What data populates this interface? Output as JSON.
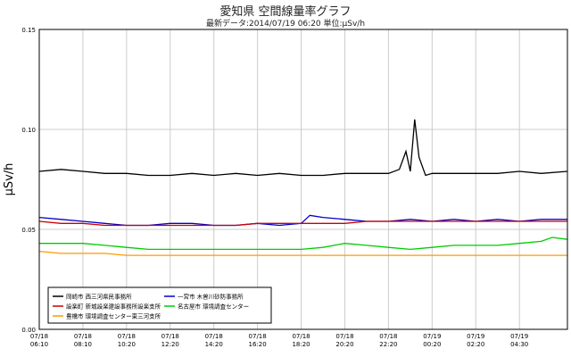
{
  "chart_data": {
    "type": "line",
    "title": "愛知県 空間線量率グラフ",
    "subtitle": "最新データ:2014/07/19 06:20 単位:μSv/h",
    "ylabel": "μSv/h",
    "ylim": [
      0,
      0.15
    ],
    "yticks": [
      "0.00",
      "0.05",
      "0.10",
      "0.15"
    ],
    "y_tick_values": [
      0,
      0.05,
      0.1,
      0.15
    ],
    "xlim": [
      0,
      24.2
    ],
    "grid": true,
    "x_ticks": [
      {
        "x": 0,
        "date": "07/18",
        "time": "06:10"
      },
      {
        "x": 2,
        "date": "07/18",
        "time": "08:10"
      },
      {
        "x": 4,
        "date": "07/18",
        "time": "10:20"
      },
      {
        "x": 6,
        "date": "07/18",
        "time": "12:20"
      },
      {
        "x": 8,
        "date": "07/18",
        "time": "14:20"
      },
      {
        "x": 10,
        "date": "07/18",
        "time": "16:20"
      },
      {
        "x": 12,
        "date": "07/18",
        "time": "18:20"
      },
      {
        "x": 14,
        "date": "07/18",
        "time": "20:20"
      },
      {
        "x": 16,
        "date": "07/18",
        "time": "22:20"
      },
      {
        "x": 18,
        "date": "07/19",
        "time": "00:20"
      },
      {
        "x": 20,
        "date": "07/19",
        "time": "02:20"
      },
      {
        "x": 22,
        "date": "07/19",
        "time": "04:30"
      }
    ],
    "legend_placement": "bottom-left",
    "series": [
      {
        "name": "岡崎市 西三河県民事務所",
        "color": "#000000",
        "x": [
          0,
          1,
          2,
          3,
          4,
          5,
          6,
          7,
          8,
          9,
          10,
          11,
          12,
          13,
          14,
          15,
          16,
          16.5,
          16.8,
          17,
          17.2,
          17.4,
          17.7,
          18,
          19,
          20,
          21,
          22,
          23,
          24.2
        ],
        "y": [
          0.079,
          0.08,
          0.079,
          0.078,
          0.078,
          0.077,
          0.077,
          0.078,
          0.077,
          0.078,
          0.077,
          0.078,
          0.077,
          0.077,
          0.078,
          0.078,
          0.078,
          0.08,
          0.089,
          0.079,
          0.105,
          0.086,
          0.077,
          0.078,
          0.078,
          0.078,
          0.078,
          0.079,
          0.078,
          0.079
        ]
      },
      {
        "name": "一宮市 木曽川砂防事務所",
        "color": "#0000cc",
        "x": [
          0,
          1,
          2,
          3,
          4,
          5,
          6,
          7,
          8,
          9,
          10,
          11,
          12,
          12.4,
          13,
          14,
          15,
          16,
          17,
          18,
          19,
          20,
          21,
          22,
          23,
          24.2
        ],
        "y": [
          0.056,
          0.055,
          0.054,
          0.053,
          0.052,
          0.052,
          0.053,
          0.053,
          0.052,
          0.052,
          0.053,
          0.052,
          0.053,
          0.057,
          0.056,
          0.055,
          0.054,
          0.054,
          0.055,
          0.054,
          0.055,
          0.054,
          0.055,
          0.054,
          0.055,
          0.055
        ]
      },
      {
        "name": "設楽町 新城設楽建設事務所設楽支所",
        "color": "#cc0000",
        "x": [
          0,
          1,
          2,
          3,
          4,
          5,
          6,
          7,
          8,
          9,
          10,
          11,
          12,
          13,
          14,
          15,
          16,
          17,
          18,
          19,
          20,
          21,
          22,
          23,
          24.2
        ],
        "y": [
          0.054,
          0.053,
          0.053,
          0.052,
          0.052,
          0.052,
          0.052,
          0.052,
          0.052,
          0.052,
          0.053,
          0.053,
          0.053,
          0.053,
          0.053,
          0.054,
          0.054,
          0.054,
          0.054,
          0.054,
          0.054,
          0.054,
          0.054,
          0.054,
          0.054
        ]
      },
      {
        "name": "名古屋市 環境調査センター",
        "color": "#00cc00",
        "x": [
          0,
          1,
          2,
          3,
          4,
          5,
          6,
          7,
          8,
          9,
          10,
          11,
          12,
          13,
          14,
          15,
          16,
          17,
          18,
          19,
          20,
          21,
          22,
          23,
          23.5,
          24.2
        ],
        "y": [
          0.043,
          0.043,
          0.043,
          0.042,
          0.041,
          0.04,
          0.04,
          0.04,
          0.04,
          0.04,
          0.04,
          0.04,
          0.04,
          0.041,
          0.043,
          0.042,
          0.041,
          0.04,
          0.041,
          0.042,
          0.042,
          0.042,
          0.043,
          0.044,
          0.046,
          0.045
        ]
      },
      {
        "name": "豊橋市 環境調査センター東三河支所",
        "color": "#ff9900",
        "x": [
          0,
          1,
          2,
          3,
          4,
          5,
          6,
          7,
          8,
          9,
          10,
          11,
          12,
          13,
          14,
          15,
          16,
          17,
          18,
          19,
          20,
          21,
          22,
          23,
          24.2
        ],
        "y": [
          0.039,
          0.038,
          0.038,
          0.038,
          0.037,
          0.037,
          0.037,
          0.037,
          0.037,
          0.037,
          0.037,
          0.037,
          0.037,
          0.037,
          0.037,
          0.037,
          0.037,
          0.037,
          0.037,
          0.037,
          0.037,
          0.037,
          0.037,
          0.037,
          0.037
        ]
      }
    ],
    "legend_order": [
      0,
      1,
      2,
      3,
      4
    ]
  }
}
